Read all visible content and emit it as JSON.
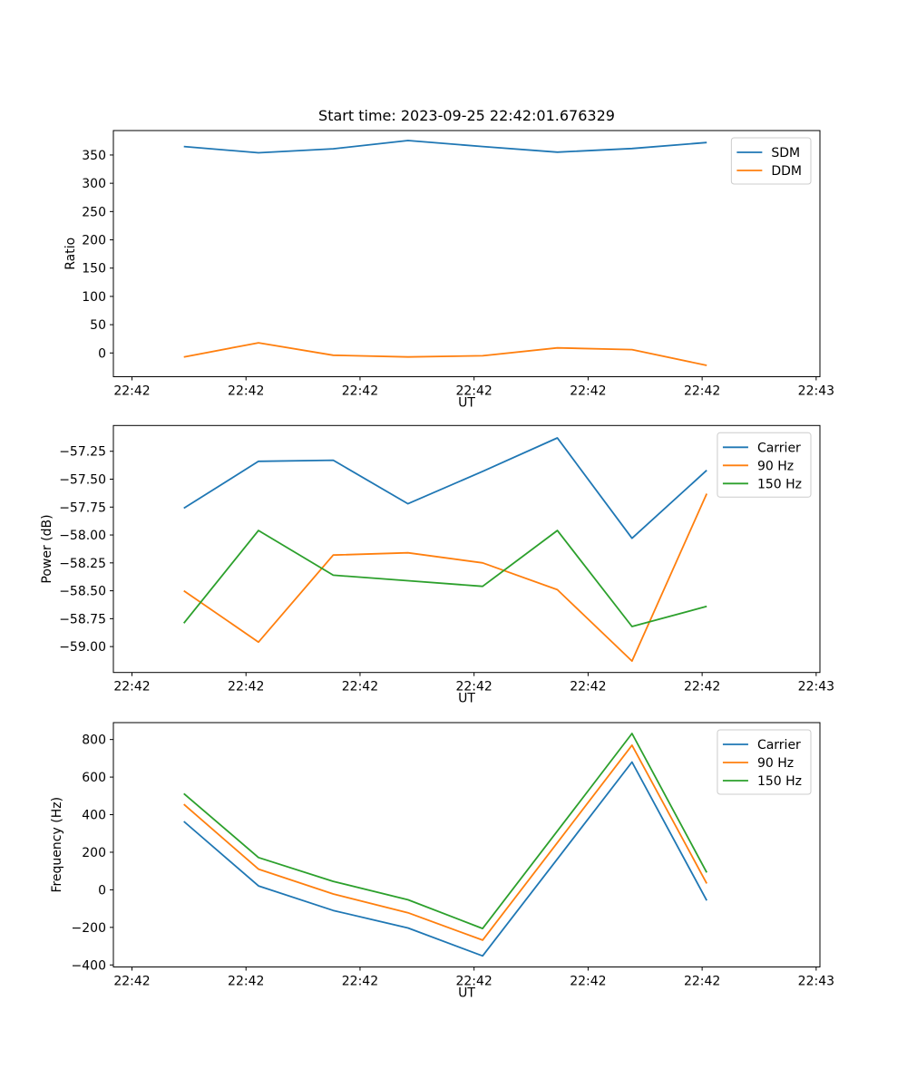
{
  "figure": {
    "title": "Start time: 2023-09-25 22:42:01.676329",
    "background": "#ffffff"
  },
  "palette": {
    "blue": "#1f77b4",
    "orange": "#ff7f0e",
    "green": "#2ca02c",
    "axis": "#000000",
    "legend_edge": "#cccccc",
    "legend_fill": "#ffffff"
  },
  "x_axis": {
    "label": "UT",
    "tick_labels": [
      "22:42",
      "22:42",
      "22:42",
      "22:42",
      "22:42",
      "22:42",
      "22:43"
    ],
    "tick_seconds": [
      0,
      10,
      20,
      30,
      40,
      50,
      60
    ],
    "xlim": [
      -1.63,
      60.33
    ],
    "x_seconds": [
      4.55,
      11.1,
      17.65,
      24.2,
      30.75,
      37.3,
      43.85,
      50.4
    ]
  },
  "chart_data": [
    {
      "type": "line",
      "name": "ratio",
      "xlabel": "UT",
      "ylabel": "Ratio",
      "ylim": [
        -42.0,
        393.2
      ],
      "grid": false,
      "legend_position": "upper right",
      "y_ticks": [
        {
          "v": 350,
          "label": "350"
        },
        {
          "v": 300,
          "label": "300"
        },
        {
          "v": 250,
          "label": "250"
        },
        {
          "v": 200,
          "label": "200"
        },
        {
          "v": 150,
          "label": "150"
        },
        {
          "v": 100,
          "label": "100"
        },
        {
          "v": 50,
          "label": "50"
        },
        {
          "v": 0,
          "label": "0"
        }
      ],
      "series": [
        {
          "name": "SDM",
          "color": "blue",
          "values": [
            365,
            354,
            361,
            375.5,
            365,
            355,
            361.5,
            372
          ]
        },
        {
          "name": "DDM",
          "color": "orange",
          "values": [
            -7,
            18,
            -4,
            -7,
            -5,
            9,
            6,
            -22
          ]
        }
      ]
    },
    {
      "type": "line",
      "name": "power",
      "xlabel": "UT",
      "ylabel": "Power (dB)",
      "ylim": [
        -59.232,
        -57.019
      ],
      "grid": false,
      "legend_position": "upper right",
      "y_ticks": [
        {
          "v": -57.25,
          "label": "−57.25"
        },
        {
          "v": -57.5,
          "label": "−57.50"
        },
        {
          "v": -57.75,
          "label": "−57.75"
        },
        {
          "v": -58.0,
          "label": "−58.00"
        },
        {
          "v": -58.25,
          "label": "−58.25"
        },
        {
          "v": -58.5,
          "label": "−58.50"
        },
        {
          "v": -58.75,
          "label": "−58.75"
        },
        {
          "v": -59.0,
          "label": "−59.00"
        }
      ],
      "series": [
        {
          "name": "Carrier",
          "color": "blue",
          "values": [
            -57.76,
            -57.34,
            -57.33,
            -57.72,
            -57.43,
            -57.13,
            -58.03,
            -57.42
          ]
        },
        {
          "name": "90 Hz",
          "color": "orange",
          "values": [
            -58.5,
            -58.96,
            -58.18,
            -58.16,
            -58.25,
            -58.49,
            -59.13,
            -57.63
          ]
        },
        {
          "name": "150 Hz",
          "color": "green",
          "values": [
            -58.79,
            -57.96,
            -58.36,
            -58.41,
            -58.46,
            -57.96,
            -58.82,
            -58.64
          ]
        }
      ]
    },
    {
      "type": "line",
      "name": "frequency",
      "xlabel": "UT",
      "ylabel": "Frequency (Hz)",
      "ylim": [
        -410.7,
        890
      ],
      "grid": false,
      "legend_position": "upper right",
      "y_ticks": [
        {
          "v": 800,
          "label": "800"
        },
        {
          "v": 600,
          "label": "600"
        },
        {
          "v": 400,
          "label": "400"
        },
        {
          "v": 200,
          "label": "200"
        },
        {
          "v": 0,
          "label": "0"
        },
        {
          "v": -200,
          "label": "−200"
        },
        {
          "v": -400,
          "label": "−400"
        }
      ],
      "series": [
        {
          "name": "Carrier",
          "color": "blue",
          "values": [
            364,
            21,
            -110,
            -203,
            -352,
            164,
            680,
            -57
          ]
        },
        {
          "name": "90 Hz",
          "color": "orange",
          "values": [
            455,
            110,
            -22,
            -122,
            -268,
            251,
            770,
            34
          ]
        },
        {
          "name": "150 Hz",
          "color": "green",
          "values": [
            512,
            172,
            45,
            -53,
            -206,
            313,
            832,
            92
          ]
        }
      ]
    }
  ]
}
